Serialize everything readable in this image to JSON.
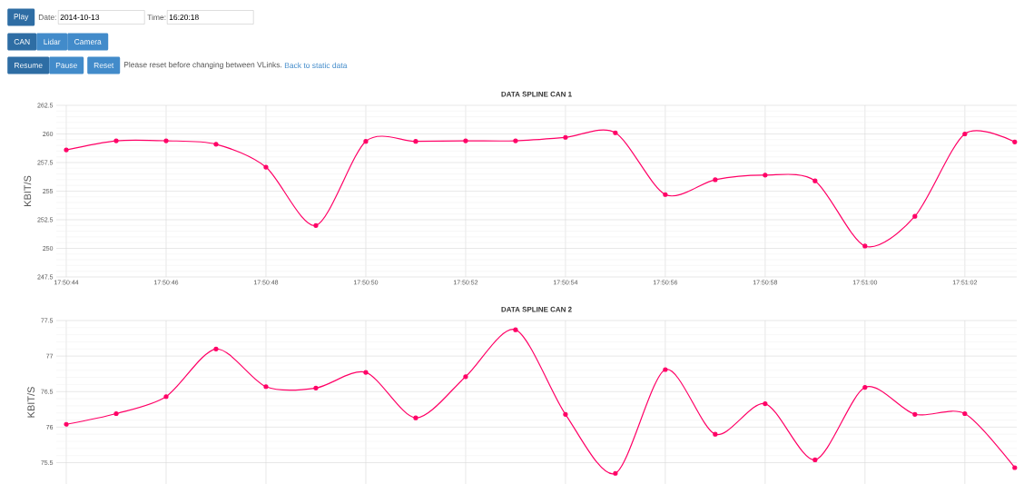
{
  "chart_data": [
    {
      "type": "other",
      "annotations": [
        "Play",
        "Date:",
        "2014-10-13",
        "Time:",
        "16:20:18",
        "CAN",
        "Lidar",
        "Camera",
        "Resume",
        "Pause",
        "Reset",
        "Please reset before changing between VLinks.",
        "Back to static data"
      ]
    },
    {
      "type": "line",
      "title": "DATA SPLINE CAN 1",
      "ylabel": "KBIT/S",
      "categories": [
        "17:50:44",
        null,
        "17:50:46",
        null,
        "17:50:48",
        null,
        "17:50:50",
        null,
        "17:50:52",
        null,
        "17:50:54",
        null,
        "17:50:56",
        null,
        "17:50:58",
        null,
        "17:51:00",
        null,
        "17:51:02",
        null
      ],
      "values": [
        258.6,
        259.4,
        259.4,
        259.1,
        257.1,
        252.0,
        259.35,
        259.35,
        259.4,
        259.4,
        259.7,
        260.1,
        254.7,
        256.0,
        256.4,
        255.9,
        250.2,
        252.8,
        260.0,
        259.3
      ],
      "color": "#ff0066",
      "marker": "circle",
      "grid": true,
      "ylim": [
        247.5,
        262.5
      ],
      "yticks": [
        247.5,
        250,
        252.5,
        255,
        257.5,
        260,
        262.5
      ]
    },
    {
      "type": "line",
      "title": "DATA SPLINE CAN 2",
      "ylabel": "KBIT/S",
      "categories": [
        null,
        null,
        null,
        null,
        null,
        null,
        null,
        null,
        null,
        null,
        null,
        null,
        null,
        null,
        null,
        null,
        null,
        null,
        null,
        null
      ],
      "values": [
        76.04,
        76.19,
        76.43,
        77.1,
        76.57,
        76.55,
        76.77,
        76.13,
        76.71,
        77.37,
        76.18,
        75.35,
        76.81,
        75.9,
        76.33,
        75.54,
        76.56,
        76.18,
        76.19,
        75.43
      ],
      "color": "#ff0066",
      "marker": "circle",
      "grid": true,
      "tick_labels": "y",
      "ylim": [
        75.2,
        77.5
      ],
      "yticks": [
        75.5,
        76,
        76.5,
        77,
        77.5
      ]
    }
  ]
}
